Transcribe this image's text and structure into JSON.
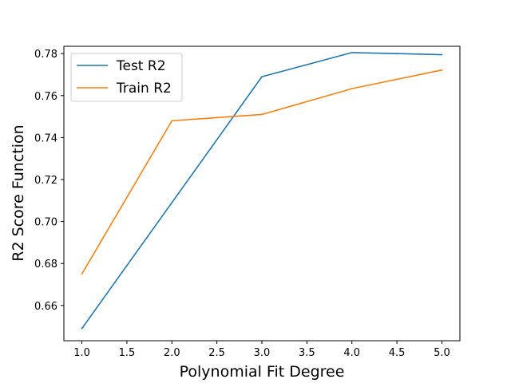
{
  "chart_data": {
    "type": "line",
    "title": "",
    "xlabel": "Polynomial Fit Degree",
    "ylabel": "R2 Score Function",
    "x": [
      1.0,
      2.0,
      3.0,
      4.0,
      5.0
    ],
    "xlim": [
      0.8,
      5.2
    ],
    "ylim": [
      0.6432,
      0.7835
    ],
    "xticks": [
      1.0,
      1.5,
      2.0,
      2.5,
      3.0,
      3.5,
      4.0,
      4.5,
      5.0
    ],
    "xtick_labels": [
      "1.0",
      "1.5",
      "2.0",
      "2.5",
      "3.0",
      "3.5",
      "4.0",
      "4.5",
      "5.0"
    ],
    "yticks": [
      0.66,
      0.68,
      0.7,
      0.72,
      0.74,
      0.76,
      0.78
    ],
    "ytick_labels": [
      "0.66",
      "0.68",
      "0.70",
      "0.72",
      "0.74",
      "0.76",
      "0.78"
    ],
    "grid": false,
    "legend_position": "top-left",
    "series": [
      {
        "name": "Test R2",
        "color": "#1f77b4",
        "values": [
          0.649,
          0.709,
          0.769,
          0.7805,
          0.7795
        ]
      },
      {
        "name": "Train R2",
        "color": "#ff7f0e",
        "values": [
          0.675,
          0.748,
          0.751,
          0.7633,
          0.7722
        ]
      }
    ]
  }
}
